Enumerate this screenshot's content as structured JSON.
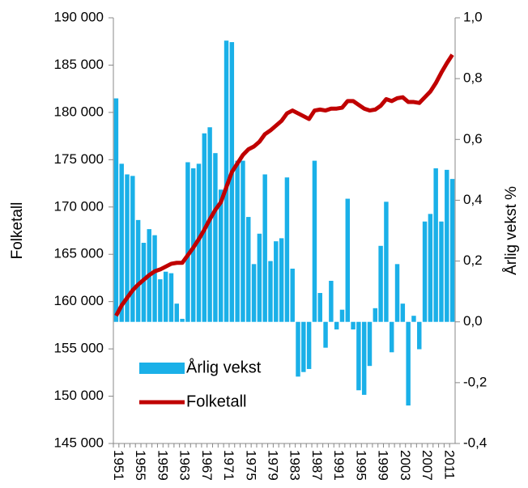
{
  "chart_data": {
    "type": "bar_line",
    "categories": [
      1951,
      null,
      null,
      null,
      1955,
      null,
      null,
      null,
      1959,
      null,
      null,
      null,
      1963,
      null,
      null,
      null,
      1967,
      null,
      null,
      null,
      1971,
      null,
      null,
      null,
      1975,
      null,
      null,
      null,
      1979,
      null,
      null,
      null,
      1983,
      null,
      null,
      null,
      1987,
      null,
      null,
      null,
      1991,
      null,
      null,
      null,
      1995,
      null,
      null,
      null,
      1999,
      null,
      null,
      null,
      2003,
      null,
      null,
      null,
      2007,
      null,
      null,
      null,
      2011,
      null
    ],
    "y_label": "Folketall",
    "y2_label": "Årlig vekst %",
    "ylim": [
      145000,
      190000
    ],
    "yticks": [
      {
        "value": 145000,
        "label": "145 000"
      },
      {
        "value": 150000,
        "label": "150 000"
      },
      {
        "value": 155000,
        "label": "155 000"
      },
      {
        "value": 160000,
        "label": "160 000"
      },
      {
        "value": 165000,
        "label": "165 000"
      },
      {
        "value": 170000,
        "label": "170 000"
      },
      {
        "value": 175000,
        "label": "175 000"
      },
      {
        "value": 180000,
        "label": "180 000"
      },
      {
        "value": 185000,
        "label": "185 000"
      },
      {
        "value": 190000,
        "label": "190 000"
      }
    ],
    "y2lim": [
      -0.4,
      1.0
    ],
    "y2ticks": [
      {
        "value": -0.4,
        "label": "-0,4"
      },
      {
        "value": -0.2,
        "label": "-0,2"
      },
      {
        "value": 0,
        "label": "0,0"
      },
      {
        "value": 0.2,
        "label": "0,2"
      },
      {
        "value": 0.4,
        "label": "0,4"
      },
      {
        "value": 0.6,
        "label": "0,6"
      },
      {
        "value": 0.8,
        "label": "0,8"
      },
      {
        "value": 1.0,
        "label": "1,0"
      }
    ],
    "legend": "lower left",
    "series": [
      {
        "name": "Årlig vekst",
        "type": "bar",
        "axis": "y2",
        "color": "#1ab0e8",
        "values": [
          0.735,
          0.52,
          0.485,
          0.48,
          0.335,
          0.26,
          0.305,
          0.285,
          0.14,
          0.165,
          0.16,
          0.06,
          0.01,
          0.525,
          0.505,
          0.52,
          0.62,
          0.64,
          0.555,
          0.435,
          0.925,
          0.92,
          0.53,
          0.53,
          0.345,
          0.19,
          0.29,
          0.485,
          0.2,
          0.265,
          0.275,
          0.475,
          0.175,
          -0.18,
          -0.165,
          -0.155,
          0.53,
          0.095,
          -0.085,
          0.135,
          -0.025,
          0.04,
          0.405,
          -0.025,
          -0.225,
          -0.24,
          -0.145,
          0.045,
          0.25,
          0.395,
          -0.1,
          0.19,
          0.06,
          -0.275,
          0.02,
          -0.09,
          0.33,
          0.355,
          0.505,
          0.33,
          0.5,
          0.47
        ]
      },
      {
        "name": "Folketall",
        "type": "line",
        "axis": "y",
        "color": "#c00000",
        "values": [
          158500,
          159600,
          160400,
          161200,
          161800,
          162300,
          162800,
          163200,
          163400,
          163700,
          164000,
          164100,
          164100,
          164900,
          165700,
          166600,
          167600,
          168700,
          169700,
          170500,
          172100,
          173700,
          174600,
          175500,
          176100,
          176400,
          176900,
          177700,
          178100,
          178600,
          179100,
          179900,
          180200,
          179900,
          179600,
          179300,
          180200,
          180300,
          180200,
          180400,
          180400,
          180500,
          181200,
          181200,
          180800,
          180400,
          180200,
          180300,
          180700,
          181400,
          181200,
          181500,
          181600,
          181100,
          181100,
          181000,
          181600,
          182200,
          183100,
          184200,
          185200,
          186100
        ]
      }
    ]
  }
}
